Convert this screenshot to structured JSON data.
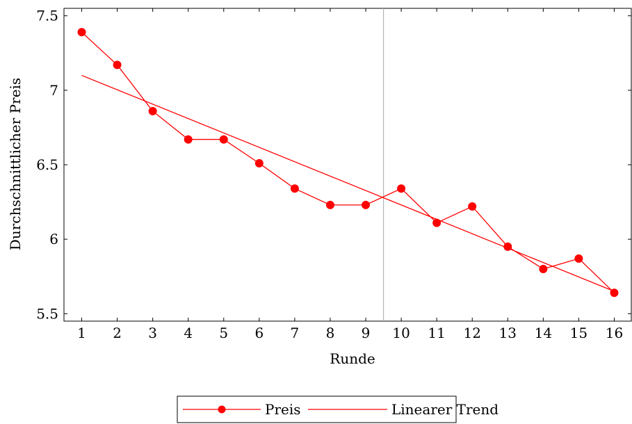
{
  "chart_data": {
    "type": "line",
    "xlabel": "Runde",
    "ylabel": "Durchschnittlicher Preis",
    "xlim": [
      0.5,
      16.5
    ],
    "ylim": [
      5.45,
      7.55
    ],
    "x_ticks": [
      1,
      2,
      3,
      4,
      5,
      6,
      7,
      8,
      9,
      10,
      11,
      12,
      13,
      14,
      15,
      16
    ],
    "y_ticks": [
      5.5,
      6,
      6.5,
      7,
      7.5
    ],
    "y_tick_labels": [
      "5.5",
      "6",
      "6.5",
      "7",
      "7.5"
    ],
    "vertical_line_x": 9.5,
    "grid": false,
    "legend_position": "bottom-center",
    "series": [
      {
        "name": "Preis",
        "style": "line-with-markers",
        "color": "#ff0000",
        "x": [
          1,
          2,
          3,
          4,
          5,
          6,
          7,
          8,
          9,
          10,
          11,
          12,
          13,
          14,
          15,
          16
        ],
        "y": [
          7.39,
          7.17,
          6.86,
          6.67,
          6.67,
          6.51,
          6.34,
          6.23,
          6.23,
          6.34,
          6.11,
          6.22,
          5.95,
          5.8,
          5.87,
          5.64
        ]
      },
      {
        "name": "Linearer Trend",
        "style": "line",
        "color": "#ff0000",
        "x": [
          1,
          16
        ],
        "y": [
          7.1,
          5.65
        ]
      }
    ]
  }
}
